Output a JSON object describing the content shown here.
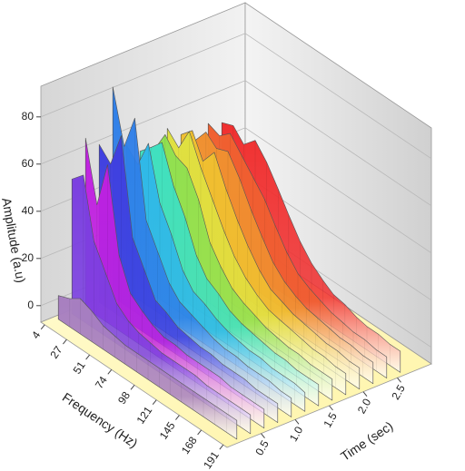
{
  "chart_data": {
    "type": "waterfall",
    "xlabel": "Frequency (Hz)",
    "ylabel": "Time (sec)",
    "zlabel": "Amplitude (a.u)",
    "x": [
      4,
      16,
      27,
      39,
      51,
      63,
      74,
      86,
      98,
      110,
      121,
      133,
      145,
      156,
      168,
      180,
      191
    ],
    "xlim": [
      0,
      195
    ],
    "xticks": [
      4,
      27,
      51,
      74,
      98,
      121,
      145,
      168,
      191
    ],
    "ylim": [
      0,
      3
    ],
    "yticks": [
      0.5,
      1.0,
      1.5,
      2.0,
      2.5
    ],
    "zlim": [
      -7,
      93
    ],
    "zticks": [
      0,
      20,
      40,
      60,
      80
    ],
    "grid": true,
    "series": [
      {
        "time": 0.2,
        "color": "#a77fc0",
        "values": [
          3,
          5,
          8,
          6,
          3,
          2,
          1,
          1,
          1,
          1,
          1,
          1,
          1,
          1,
          1,
          1,
          1
        ]
      },
      {
        "time": 0.4,
        "color": "#7b3fe0",
        "values": [
          50,
          55,
          30,
          20,
          10,
          6,
          4,
          3,
          2,
          2,
          2,
          2,
          1,
          1,
          1,
          1,
          1
        ]
      },
      {
        "time": 0.6,
        "color": "#c020e0",
        "values": [
          65,
          40,
          60,
          25,
          12,
          8,
          5,
          3,
          3,
          2,
          2,
          2,
          2,
          1,
          1,
          1,
          1
        ]
      },
      {
        "time": 0.8,
        "color": "#3f3fe0",
        "values": [
          60,
          55,
          70,
          30,
          20,
          10,
          8,
          5,
          4,
          3,
          3,
          2,
          2,
          2,
          1,
          1,
          1
        ]
      },
      {
        "time": 1.0,
        "color": "#2f7fe8",
        "values": [
          82,
          60,
          75,
          35,
          25,
          15,
          10,
          8,
          6,
          4,
          3,
          3,
          2,
          2,
          2,
          1,
          1
        ]
      },
      {
        "time": 1.2,
        "color": "#30b8e8",
        "values": [
          55,
          50,
          62,
          40,
          30,
          18,
          12,
          10,
          7,
          5,
          4,
          3,
          3,
          2,
          2,
          2,
          1
        ]
      },
      {
        "time": 1.4,
        "color": "#40e0c0",
        "values": [
          50,
          55,
          60,
          45,
          35,
          22,
          15,
          12,
          8,
          6,
          5,
          4,
          3,
          3,
          2,
          2,
          2
        ]
      },
      {
        "time": 1.6,
        "color": "#90e050",
        "values": [
          48,
          58,
          52,
          50,
          40,
          25,
          18,
          12,
          9,
          7,
          5,
          4,
          3,
          3,
          2,
          2,
          2
        ]
      },
      {
        "time": 1.8,
        "color": "#e0e040",
        "values": [
          55,
          50,
          60,
          48,
          38,
          28,
          20,
          14,
          10,
          7,
          6,
          5,
          4,
          3,
          3,
          2,
          2
        ]
      },
      {
        "time": 2.0,
        "color": "#f0c030",
        "values": [
          50,
          55,
          45,
          52,
          40,
          30,
          22,
          15,
          10,
          8,
          6,
          5,
          4,
          3,
          3,
          2,
          2
        ]
      },
      {
        "time": 2.2,
        "color": "#f09030",
        "values": [
          45,
          52,
          48,
          50,
          42,
          32,
          24,
          16,
          11,
          8,
          6,
          5,
          4,
          3,
          3,
          2,
          2
        ]
      },
      {
        "time": 2.4,
        "color": "#f06030",
        "values": [
          50,
          48,
          52,
          46,
          40,
          34,
          26,
          18,
          12,
          9,
          7,
          5,
          4,
          3,
          3,
          2,
          2
        ]
      },
      {
        "time": 2.6,
        "color": "#f03030",
        "values": [
          48,
          50,
          45,
          50,
          44,
          36,
          28,
          20,
          14,
          10,
          7,
          6,
          4,
          3,
          3,
          2,
          2
        ]
      }
    ]
  }
}
